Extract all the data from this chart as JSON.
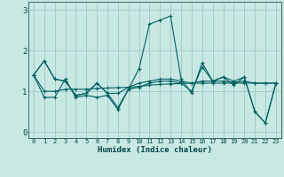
{
  "xlabel": "Humidex (Indice chaleur)",
  "bg_color": "#c8e8e4",
  "grid_color": "#a0cccc",
  "line_color": "#006060",
  "xlim": [
    -0.5,
    23.5
  ],
  "ylim": [
    -0.15,
    3.2
  ],
  "yticks": [
    0,
    1,
    2,
    3
  ],
  "xticks": [
    0,
    1,
    2,
    3,
    4,
    5,
    6,
    7,
    8,
    9,
    10,
    11,
    12,
    13,
    14,
    15,
    16,
    17,
    18,
    19,
    20,
    21,
    22,
    23
  ],
  "series": [
    [
      1.4,
      1.75,
      1.3,
      1.25,
      0.9,
      0.95,
      1.2,
      0.95,
      0.6,
      1.05,
      1.55,
      2.65,
      2.75,
      2.85,
      1.3,
      0.95,
      1.7,
      1.25,
      1.35,
      1.25,
      1.35,
      0.5,
      0.22,
      1.2
    ],
    [
      1.4,
      0.85,
      0.85,
      1.3,
      0.85,
      0.9,
      0.85,
      0.9,
      0.55,
      1.05,
      1.1,
      1.2,
      1.25,
      1.25,
      1.2,
      1.0,
      1.6,
      1.25,
      1.35,
      1.15,
      1.35,
      0.5,
      0.22,
      1.2
    ],
    [
      1.4,
      1.0,
      1.0,
      1.05,
      1.05,
      1.05,
      1.07,
      1.08,
      1.09,
      1.1,
      1.12,
      1.15,
      1.17,
      1.18,
      1.19,
      1.2,
      1.2,
      1.2,
      1.2,
      1.2,
      1.2,
      1.2,
      1.2,
      1.2
    ],
    [
      1.4,
      1.75,
      1.3,
      1.25,
      0.9,
      0.95,
      1.2,
      0.95,
      0.95,
      1.1,
      1.2,
      1.25,
      1.3,
      1.3,
      1.25,
      1.2,
      1.25,
      1.25,
      1.25,
      1.22,
      1.25,
      1.2,
      1.2,
      1.2
    ]
  ]
}
